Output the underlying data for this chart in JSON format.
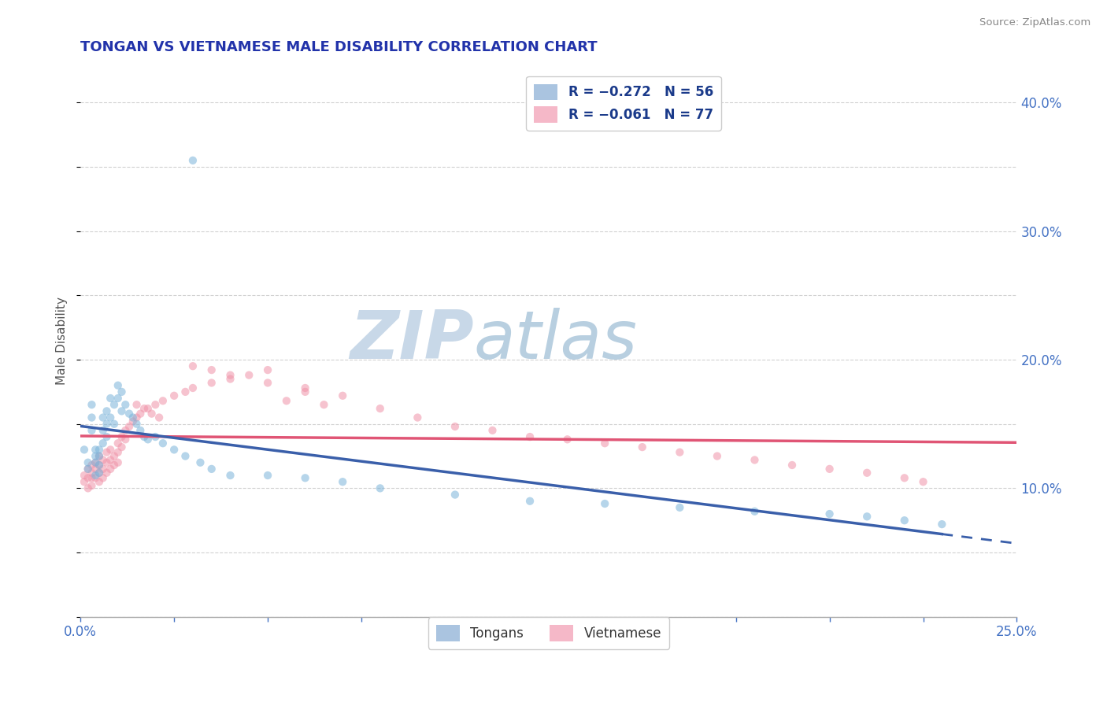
{
  "title": "TONGAN VS VIETNAMESE MALE DISABILITY CORRELATION CHART",
  "source": "Source: ZipAtlas.com",
  "ylabel": "Male Disability",
  "xmin": 0.0,
  "xmax": 0.25,
  "ymin": 0.0,
  "ymax": 0.43,
  "right_yticks": [
    0.0,
    0.1,
    0.2,
    0.3,
    0.4
  ],
  "right_ylabels": [
    "",
    "10.0%",
    "20.0%",
    "30.0%",
    "40.0%"
  ],
  "legend_top": [
    {
      "label": "R = -0.272   N = 56",
      "color": "#aac4e0"
    },
    {
      "label": "R = -0.061   N = 77",
      "color": "#f5b8c8"
    }
  ],
  "tongan_color": "#7ab3d9",
  "vietnamese_color": "#f093a8",
  "tongan_line_color": "#3a5faa",
  "vietnamese_line_color": "#e05575",
  "bg_color": "#ffffff",
  "grid_color": "#cccccc",
  "watermark_color": "#dde7f0",
  "marker_size": 55,
  "marker_alpha": 0.55,
  "tongan_x": [
    0.001,
    0.002,
    0.002,
    0.003,
    0.003,
    0.003,
    0.004,
    0.004,
    0.004,
    0.004,
    0.005,
    0.005,
    0.005,
    0.005,
    0.006,
    0.006,
    0.006,
    0.007,
    0.007,
    0.007,
    0.008,
    0.008,
    0.009,
    0.009,
    0.01,
    0.01,
    0.011,
    0.011,
    0.012,
    0.013,
    0.014,
    0.015,
    0.016,
    0.017,
    0.018,
    0.02,
    0.022,
    0.025,
    0.028,
    0.032,
    0.035,
    0.04,
    0.05,
    0.06,
    0.07,
    0.08,
    0.1,
    0.12,
    0.14,
    0.16,
    0.18,
    0.2,
    0.21,
    0.22,
    0.23,
    0.03
  ],
  "tongan_y": [
    0.13,
    0.12,
    0.115,
    0.165,
    0.155,
    0.145,
    0.13,
    0.125,
    0.12,
    0.11,
    0.13,
    0.125,
    0.118,
    0.112,
    0.155,
    0.145,
    0.135,
    0.16,
    0.15,
    0.14,
    0.17,
    0.155,
    0.165,
    0.15,
    0.18,
    0.17,
    0.175,
    0.16,
    0.165,
    0.158,
    0.155,
    0.15,
    0.145,
    0.14,
    0.138,
    0.14,
    0.135,
    0.13,
    0.125,
    0.12,
    0.115,
    0.11,
    0.11,
    0.108,
    0.105,
    0.1,
    0.095,
    0.09,
    0.088,
    0.085,
    0.082,
    0.08,
    0.078,
    0.075,
    0.072,
    0.355
  ],
  "vietnamese_x": [
    0.001,
    0.001,
    0.002,
    0.002,
    0.002,
    0.003,
    0.003,
    0.003,
    0.003,
    0.004,
    0.004,
    0.004,
    0.005,
    0.005,
    0.005,
    0.005,
    0.006,
    0.006,
    0.006,
    0.007,
    0.007,
    0.007,
    0.008,
    0.008,
    0.008,
    0.009,
    0.009,
    0.01,
    0.01,
    0.01,
    0.011,
    0.011,
    0.012,
    0.012,
    0.013,
    0.014,
    0.015,
    0.016,
    0.018,
    0.02,
    0.022,
    0.025,
    0.028,
    0.03,
    0.035,
    0.04,
    0.045,
    0.05,
    0.055,
    0.06,
    0.065,
    0.07,
    0.08,
    0.09,
    0.1,
    0.11,
    0.12,
    0.13,
    0.14,
    0.15,
    0.16,
    0.17,
    0.18,
    0.19,
    0.2,
    0.21,
    0.22,
    0.225,
    0.03,
    0.035,
    0.04,
    0.05,
    0.06,
    0.015,
    0.017,
    0.019,
    0.021
  ],
  "vietnamese_y": [
    0.11,
    0.105,
    0.115,
    0.108,
    0.1,
    0.118,
    0.112,
    0.108,
    0.102,
    0.12,
    0.115,
    0.108,
    0.125,
    0.118,
    0.112,
    0.105,
    0.122,
    0.115,
    0.108,
    0.128,
    0.12,
    0.112,
    0.13,
    0.122,
    0.115,
    0.125,
    0.118,
    0.135,
    0.128,
    0.12,
    0.14,
    0.132,
    0.145,
    0.138,
    0.148,
    0.152,
    0.155,
    0.158,
    0.162,
    0.165,
    0.168,
    0.172,
    0.175,
    0.178,
    0.182,
    0.185,
    0.188,
    0.192,
    0.168,
    0.175,
    0.165,
    0.172,
    0.162,
    0.155,
    0.148,
    0.145,
    0.14,
    0.138,
    0.135,
    0.132,
    0.128,
    0.125,
    0.122,
    0.118,
    0.115,
    0.112,
    0.108,
    0.105,
    0.195,
    0.192,
    0.188,
    0.182,
    0.178,
    0.165,
    0.162,
    0.158,
    0.155
  ]
}
